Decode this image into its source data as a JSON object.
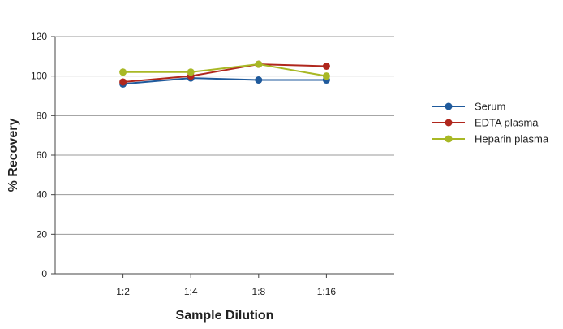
{
  "chart_data": {
    "type": "line",
    "categories": [
      "1:2",
      "1:4",
      "1:8",
      "1:16"
    ],
    "xlabel": "Sample Dilution",
    "ylabel": "% Recovery",
    "ylim": [
      0,
      120
    ],
    "yticks": [
      "0",
      "20",
      "40",
      "60",
      "80",
      "100",
      "120"
    ],
    "grid": true,
    "legend_position": "right",
    "series": [
      {
        "name": "Serum",
        "color": "#1f5a9c",
        "values": [
          96,
          99,
          98,
          98
        ]
      },
      {
        "name": "EDTA plasma",
        "color": "#b0271d",
        "values": [
          97,
          100,
          106,
          105
        ]
      },
      {
        "name": "Heparin plasma",
        "color": "#a8b825",
        "values": [
          102,
          102,
          106,
          100
        ]
      }
    ]
  }
}
